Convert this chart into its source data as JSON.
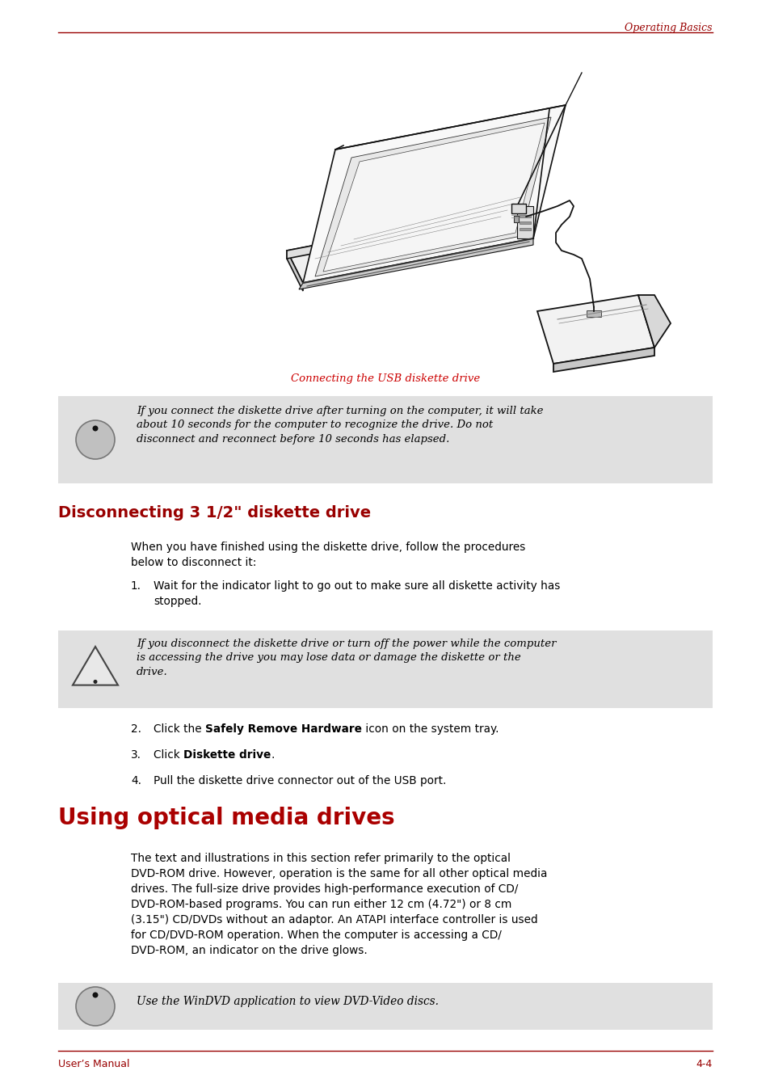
{
  "page_bg": "#ffffff",
  "header_text": "Operating Basics",
  "header_color": "#990000",
  "footer_left": "User’s Manual",
  "footer_right": "4-4",
  "footer_color": "#990000",
  "line_color": "#990000",
  "caption_text": "Connecting the USB diskette drive",
  "caption_color": "#cc0000",
  "info_box1_text": "If you connect the diskette drive after turning on the computer, it will take\nabout 10 seconds for the computer to recognize the drive. Do not\ndisconnect and reconnect before 10 seconds has elapsed.",
  "info_box_bg": "#e0e0e0",
  "warning_text": "If you disconnect the diskette drive or turn off the power while the computer\nis accessing the drive you may lose data or damage the diskette or the\ndrive.",
  "info_box2_text": "Use the WinDVD application to view DVD-Video discs.",
  "section_title1": "Disconnecting 3 1/2\" diskette drive",
  "section_title1_color": "#990000",
  "section_title2": "Using optical media drives",
  "section_title2_color": "#aa0000",
  "body_color": "#000000",
  "body_intro": "When you have finished using the diskette drive, follow the procedures\nbelow to disconnect it:",
  "body_section2": "The text and illustrations in this section refer primarily to the optical\nDVD-ROM drive. However, operation is the same for all other optical media\ndrives. The full-size drive provides high-performance execution of CD/\nDVD-ROM-based programs. You can run either 12 cm (4.72\") or 8 cm\n(3.15\") CD/DVDs without an adaptor. An ATAPI interface controller is used\nfor CD/DVD-ROM operation. When the computer is accessing a CD/\nDVD-ROM, an indicator on the drive glows.",
  "figwidth": 9.54,
  "figheight": 13.51,
  "dpi": 100
}
